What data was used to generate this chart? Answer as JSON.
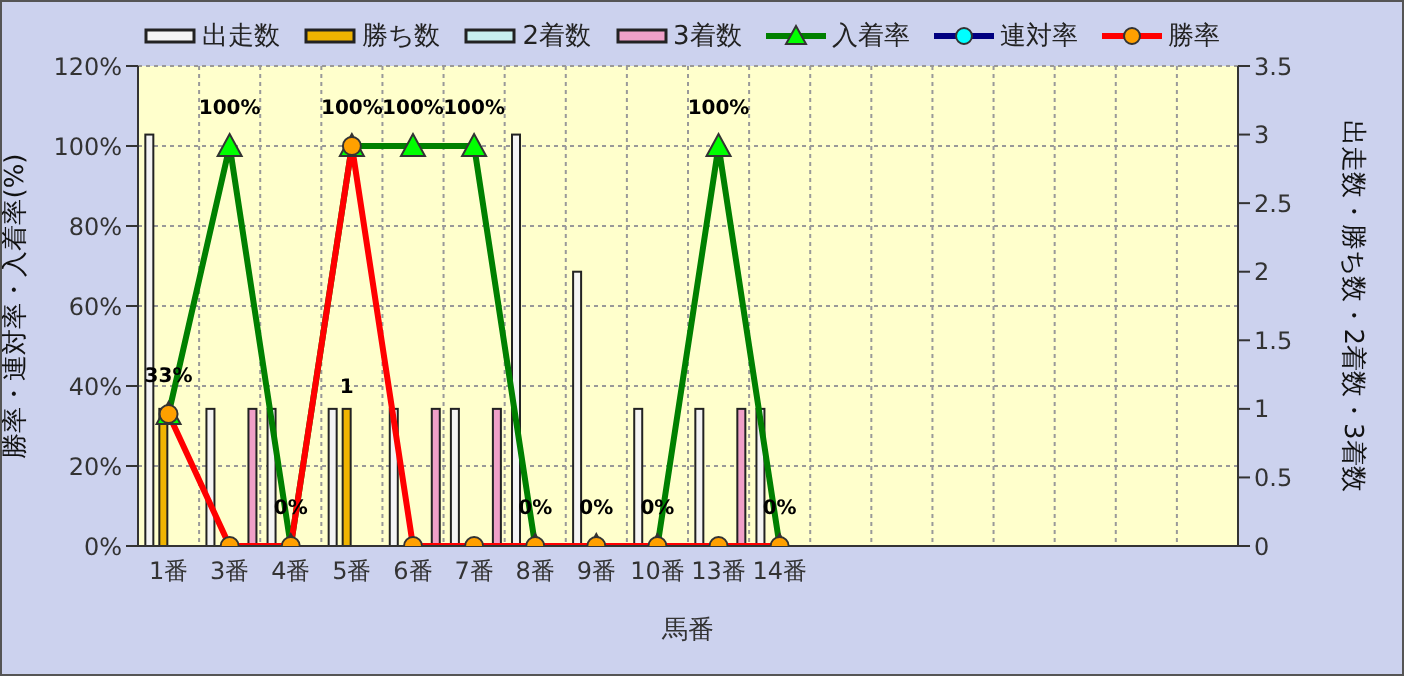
{
  "chart_data": {
    "type": "bar",
    "xlabel": "馬番",
    "ylabel": "勝率・連対率・入着率(%)",
    "y2label": "出走数・勝ち数・2着数・3着数",
    "categories": [
      "1番",
      "3番",
      "4番",
      "5番",
      "6番",
      "7番",
      "8番",
      "9番",
      "10番",
      "13番",
      "14番",
      null,
      null,
      null,
      null,
      null,
      null,
      null
    ],
    "series": [
      {
        "name": "出走数",
        "axis": "y2",
        "color": "#f4f4f4",
        "values": [
          3,
          1,
          1,
          1,
          1,
          1,
          3,
          2,
          1,
          1,
          1,
          null,
          null,
          null,
          null,
          null,
          null,
          null
        ]
      },
      {
        "name": "勝ち数",
        "axis": "y2",
        "color": "#f0b400",
        "values": [
          1,
          0,
          0,
          1,
          0,
          0,
          0,
          0,
          0,
          0,
          0,
          null,
          null,
          null,
          null,
          null,
          null,
          null
        ],
        "value_labels": [
          null,
          null,
          null,
          "1",
          null,
          null,
          null,
          null,
          null,
          null,
          null,
          null,
          null,
          null,
          null,
          null,
          null,
          null
        ]
      },
      {
        "name": "2着数",
        "axis": "y2",
        "color": "#c8f0f0",
        "values": [
          0,
          0,
          0,
          0,
          0,
          0,
          0,
          0,
          0,
          0,
          0,
          null,
          null,
          null,
          null,
          null,
          null,
          null
        ]
      },
      {
        "name": "3着数",
        "axis": "y2",
        "color": "#f0a0c8",
        "values": [
          0,
          1,
          0,
          0,
          1,
          1,
          0,
          0,
          0,
          1,
          0,
          null,
          null,
          null,
          null,
          null,
          null,
          null
        ]
      },
      {
        "name": "入着率",
        "type": "line",
        "marker": "triangle",
        "color": "#008000",
        "colors": [
          "#00ff00",
          "#00ff00",
          "#00ff00",
          "#00ff00",
          "#00ff00",
          "#00ff00",
          "#00ff00",
          "#00ff00",
          "#00ff00",
          "#00ff00",
          "#00ff00",
          null,
          null,
          null,
          null,
          null,
          null,
          null
        ],
        "values": [
          33,
          100,
          0,
          100,
          100,
          100,
          0,
          0,
          0,
          100,
          0,
          null,
          null,
          null,
          null,
          null,
          null,
          null
        ],
        "value_labels": [
          "33%",
          "100%",
          "0%",
          "100%",
          "100%",
          "100%",
          "0%",
          "0%",
          "0%",
          "100%",
          "0%",
          null,
          null,
          null,
          null,
          null,
          null,
          null
        ]
      },
      {
        "name": "連対率",
        "type": "line",
        "marker": "circle",
        "color": "#000080",
        "colors": [
          "#00ffff",
          "#00ffff",
          "#00ffff",
          "#00ffff",
          "#00ffff",
          "#00ffff",
          "#00ffff",
          "#00ffff",
          "#00ffff",
          "#00ffff",
          "#00ffff",
          null,
          null,
          null,
          null,
          null,
          null,
          null
        ],
        "values": [
          null,
          null,
          null,
          null,
          null,
          null,
          null,
          null,
          null,
          null,
          null,
          null,
          null,
          null,
          null,
          null,
          null,
          null
        ]
      },
      {
        "name": "勝率",
        "type": "line",
        "marker": "circle",
        "color": "#ff0000",
        "colors": [
          "#ffa000",
          "#ffa000",
          "#ffa000",
          "#ffa000",
          "#ffa000",
          "#ffa000",
          "#ffa000",
          "#ffa000",
          "#ffa000",
          "#ffa000",
          "#ffa000",
          null,
          null,
          null,
          null,
          null,
          null,
          null
        ],
        "values": [
          33,
          0,
          0,
          100,
          0,
          0,
          0,
          0,
          0,
          0,
          0,
          null,
          null,
          null,
          null,
          null,
          null,
          null
        ]
      }
    ],
    "ylim": [
      0,
      120
    ],
    "yticks": [
      {
        "value": 0,
        "label": "0%"
      },
      {
        "value": 20,
        "label": "20%"
      },
      {
        "value": 40,
        "label": "40%"
      },
      {
        "value": 60,
        "label": "60%"
      },
      {
        "value": 80,
        "label": "80%"
      },
      {
        "value": 100,
        "label": "100%"
      },
      {
        "value": 120,
        "label": "120%"
      }
    ],
    "y2lim": [
      0,
      3.5
    ],
    "y2ticks": [
      0,
      0.5,
      1,
      1.5,
      2,
      2.5,
      3,
      3.5
    ],
    "grid": true,
    "legend": "top"
  }
}
